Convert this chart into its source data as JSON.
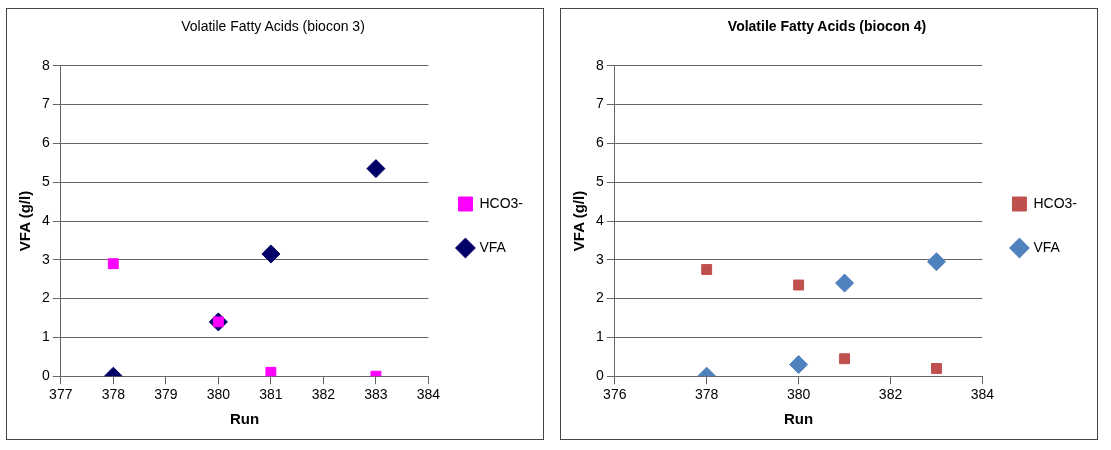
{
  "chart_data": [
    {
      "type": "scatter",
      "title": "Volatile Fatty Acids (biocon 3)",
      "xlabel": "Run",
      "ylabel": "VFA (g/l)",
      "xlim": [
        377,
        384
      ],
      "xticks": [
        377,
        378,
        379,
        380,
        381,
        382,
        383,
        384
      ],
      "ylim": [
        0,
        8
      ],
      "yticks": [
        0,
        1,
        2,
        3,
        4,
        5,
        6,
        7,
        8
      ],
      "grid": "y",
      "legend": "right",
      "series": [
        {
          "name": "VFA",
          "color": "#000066",
          "marker": "diamond",
          "x": [
            378,
            380,
            381,
            383
          ],
          "values": [
            0,
            1.4,
            3.15,
            5.35
          ]
        },
        {
          "name": "HCO3-",
          "color": "#ff00ff",
          "marker": "square",
          "x": [
            378,
            380,
            381,
            383
          ],
          "values": [
            2.9,
            1.4,
            0.1,
            0
          ]
        }
      ]
    },
    {
      "type": "scatter",
      "title": "Volatile Fatty Acids (biocon 4)",
      "xlabel": "Run",
      "ylabel": "VFA (g/l)",
      "xlim": [
        376,
        384
      ],
      "xticks": [
        376,
        378,
        380,
        382,
        384
      ],
      "ylim": [
        0,
        8
      ],
      "yticks": [
        0,
        1,
        2,
        3,
        4,
        5,
        6,
        7,
        8
      ],
      "grid": "y",
      "legend": "right",
      "series": [
        {
          "name": "VFA",
          "color": "#4f81bd",
          "marker": "diamond",
          "x": [
            378,
            380,
            381,
            383
          ],
          "values": [
            0,
            0.3,
            2.4,
            2.95
          ]
        },
        {
          "name": "HCO3-",
          "color": "#c0504d",
          "marker": "square",
          "x": [
            378,
            380,
            381,
            383
          ],
          "values": [
            2.75,
            2.35,
            0.45,
            0.2
          ]
        }
      ]
    }
  ]
}
